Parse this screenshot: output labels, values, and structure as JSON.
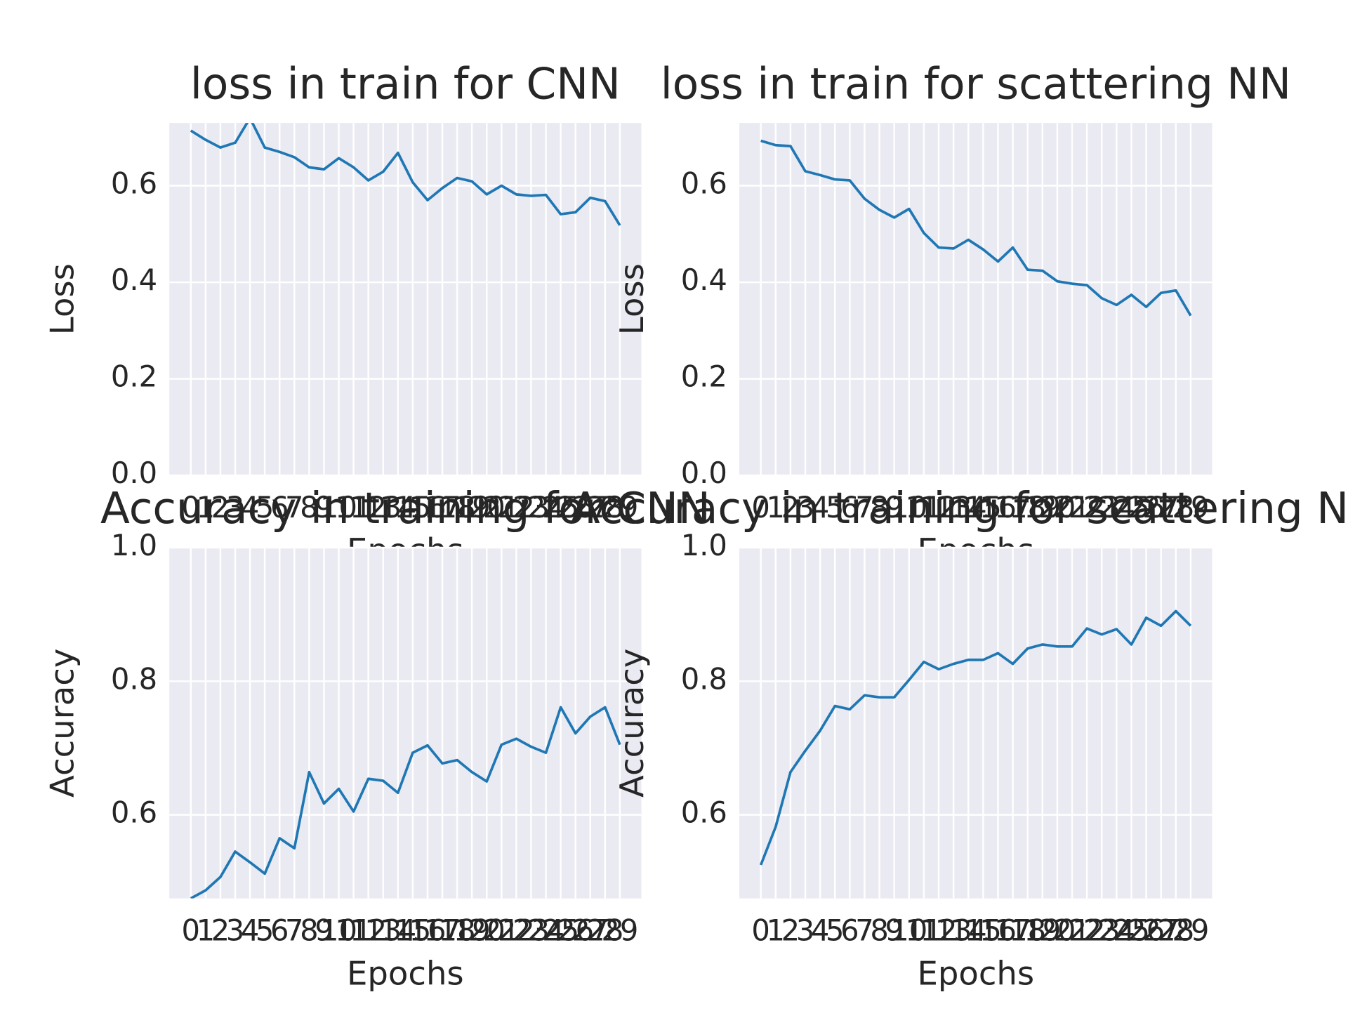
{
  "chart_data": [
    {
      "type": "line",
      "title": "loss in train for CNN",
      "xlabel": "Epochs",
      "ylabel": "Loss",
      "x": [
        0,
        1,
        2,
        3,
        4,
        5,
        6,
        7,
        8,
        9,
        10,
        11,
        12,
        13,
        14,
        15,
        16,
        17,
        18,
        19,
        20,
        21,
        22,
        23,
        24,
        25,
        26,
        27,
        28,
        29
      ],
      "series": [
        {
          "color": "#1f77b4",
          "values": [
            0.714,
            0.695,
            0.679,
            0.689,
            0.74,
            0.679,
            0.67,
            0.659,
            0.638,
            0.634,
            0.657,
            0.638,
            0.611,
            0.629,
            0.668,
            0.607,
            0.57,
            0.595,
            0.616,
            0.609,
            0.582,
            0.6,
            0.582,
            0.579,
            0.581,
            0.541,
            0.545,
            0.575,
            0.568,
            0.518
          ]
        }
      ],
      "xlim": [
        -1.45,
        30.45
      ],
      "xticks": [
        0,
        1,
        2,
        3,
        4,
        5,
        6,
        7,
        8,
        9,
        10,
        11,
        12,
        13,
        14,
        15,
        16,
        17,
        18,
        19,
        20,
        21,
        22,
        23,
        24,
        25,
        26,
        27,
        28,
        29
      ],
      "ylim": [
        0,
        0.73
      ],
      "yticks": [
        {
          "value": 0,
          "label": "0.0"
        },
        0.2,
        0.4,
        0.6
      ],
      "grid": true
    },
    {
      "type": "line",
      "title": "loss in train for scattering NN",
      "xlabel": "Epochs",
      "ylabel": "Loss",
      "x": [
        0,
        1,
        2,
        3,
        4,
        5,
        6,
        7,
        8,
        9,
        10,
        11,
        12,
        13,
        14,
        15,
        16,
        17,
        18,
        19,
        20,
        21,
        22,
        23,
        24,
        25,
        26,
        27,
        28,
        29
      ],
      "series": [
        {
          "color": "#1f77b4",
          "values": [
            0.693,
            0.684,
            0.682,
            0.63,
            0.622,
            0.613,
            0.611,
            0.573,
            0.55,
            0.534,
            0.552,
            0.502,
            0.472,
            0.47,
            0.488,
            0.468,
            0.443,
            0.472,
            0.426,
            0.424,
            0.402,
            0.397,
            0.394,
            0.367,
            0.353,
            0.374,
            0.349,
            0.378,
            0.383,
            0.331
          ]
        }
      ],
      "xlim": [
        -1.45,
        30.45
      ],
      "xticks": [
        0,
        1,
        2,
        3,
        4,
        5,
        6,
        7,
        8,
        9,
        10,
        11,
        12,
        13,
        14,
        15,
        16,
        17,
        18,
        19,
        20,
        21,
        22,
        23,
        24,
        25,
        26,
        27,
        28,
        29
      ],
      "ylim": [
        0,
        0.73
      ],
      "yticks": [
        {
          "value": 0,
          "label": "0.0"
        },
        0.2,
        0.4,
        0.6
      ],
      "grid": true
    },
    {
      "type": "line",
      "title": "Accuracy in training for CNN",
      "xlabel": "Epochs",
      "ylabel": "Accuracy",
      "x": [
        0,
        1,
        2,
        3,
        4,
        5,
        6,
        7,
        8,
        9,
        10,
        11,
        12,
        13,
        14,
        15,
        16,
        17,
        18,
        19,
        20,
        21,
        22,
        23,
        24,
        25,
        26,
        27,
        28,
        29
      ],
      "series": [
        {
          "color": "#1f77b4",
          "values": [
            0.475,
            0.487,
            0.507,
            0.545,
            0.529,
            0.512,
            0.565,
            0.55,
            0.664,
            0.617,
            0.639,
            0.605,
            0.654,
            0.651,
            0.633,
            0.693,
            0.704,
            0.677,
            0.682,
            0.664,
            0.65,
            0.705,
            0.714,
            0.702,
            0.693,
            0.761,
            0.722,
            0.747,
            0.761,
            0.705
          ]
        }
      ],
      "xlim": [
        -1.45,
        30.45
      ],
      "xticks": [
        0,
        1,
        2,
        3,
        4,
        5,
        6,
        7,
        8,
        9,
        10,
        11,
        12,
        13,
        14,
        15,
        16,
        17,
        18,
        19,
        20,
        21,
        22,
        23,
        24,
        25,
        26,
        27,
        28,
        29
      ],
      "ylim": [
        0.475,
        1
      ],
      "yticks": [
        0.6,
        0.8,
        {
          "value": 1,
          "label": "1.0"
        }
      ],
      "grid": true
    },
    {
      "type": "line",
      "title": "Accuracy in training for scattering NN",
      "xlabel": "Epochs",
      "ylabel": "Accuracy",
      "x": [
        0,
        1,
        2,
        3,
        4,
        5,
        6,
        7,
        8,
        9,
        10,
        11,
        12,
        13,
        14,
        15,
        16,
        17,
        18,
        19,
        20,
        21,
        22,
        23,
        24,
        25,
        26,
        27,
        28,
        29
      ],
      "series": [
        {
          "color": "#1f77b4",
          "values": [
            0.525,
            0.582,
            0.664,
            0.696,
            0.726,
            0.763,
            0.758,
            0.779,
            0.776,
            0.776,
            0.802,
            0.829,
            0.818,
            0.826,
            0.832,
            0.832,
            0.842,
            0.826,
            0.849,
            0.855,
            0.852,
            0.852,
            0.879,
            0.87,
            0.878,
            0.855,
            0.895,
            0.883,
            0.905,
            0.883
          ]
        }
      ],
      "xlim": [
        -1.45,
        30.45
      ],
      "xticks": [
        0,
        1,
        2,
        3,
        4,
        5,
        6,
        7,
        8,
        9,
        10,
        11,
        12,
        13,
        14,
        15,
        16,
        17,
        18,
        19,
        20,
        21,
        22,
        23,
        24,
        25,
        26,
        27,
        28,
        29
      ],
      "ylim": [
        0.475,
        1
      ],
      "yticks": [
        0.6,
        0.8,
        {
          "value": 1,
          "label": "1.0"
        }
      ],
      "grid": true
    }
  ]
}
